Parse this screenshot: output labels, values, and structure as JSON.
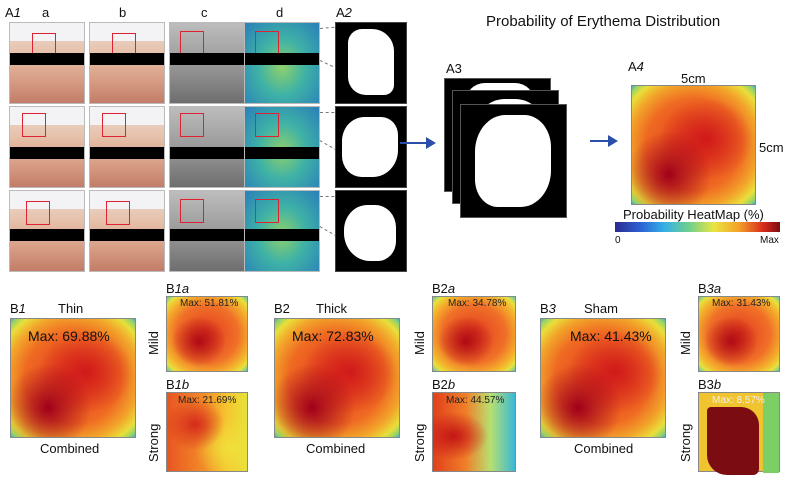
{
  "title": "Probability of Erythema Distribution",
  "labels": {
    "A1": "A",
    "A1_num": "1",
    "col_a": "a",
    "col_b": "b",
    "col_c": "c",
    "col_d": "d",
    "A2": "A",
    "A2_num": "2",
    "A3": "A3",
    "A4": "A",
    "A4_num": "4",
    "width_5cm": "5cm",
    "height_5cm": "5cm",
    "heatmap_caption": "Probability HeatMap (%)",
    "scale_min": "0",
    "scale_max": "Max"
  },
  "groups": [
    {
      "id": "B",
      "num": "1",
      "name": "Thin",
      "max": "Max: 69.88%",
      "combined": "Combined",
      "mild_id": "B",
      "mild_num": "1a",
      "mild_max": "Max: 51.81%",
      "strong_id": "B",
      "strong_num": "1b",
      "strong_max": "Max: 21.69%"
    },
    {
      "id": "B2",
      "num": "",
      "name": "Thick",
      "max": "Max: 72.83%",
      "combined": "Combined",
      "mild_id": "B2",
      "mild_num": "a",
      "mild_max": "Max: 34.78%",
      "strong_id": "B2",
      "strong_num": "b",
      "strong_max": "Max: 44.57%"
    },
    {
      "id": "B",
      "num": "3",
      "name": "Sham",
      "max": "Max: 41.43%",
      "combined": "Combined",
      "mild_id": "B",
      "mild_num": "3a",
      "mild_max": "Max: 31.43%",
      "strong_id": "B3",
      "strong_num": "b",
      "strong_max": "Max: 8.57%"
    }
  ],
  "row_labels": {
    "mild": "Mild",
    "strong": "Strong"
  }
}
